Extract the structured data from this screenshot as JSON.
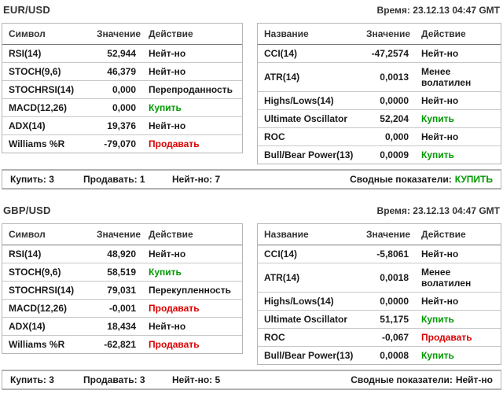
{
  "colors": {
    "buy": "#009900",
    "sell": "#dd0000",
    "text": "#1a1a1a",
    "border": "#b5b5b5"
  },
  "sections": [
    {
      "pair": "EUR/USD",
      "time": "Время: 23.12.13 04:47 GMT",
      "left_table": {
        "headers": {
          "name": "Символ",
          "value": "Значение",
          "action": "Действие"
        },
        "rows": [
          {
            "name": "RSI(14)",
            "value": "52,944",
            "action": "Нейт-но",
            "action_class": "plain"
          },
          {
            "name": "STOCH(9,6)",
            "value": "46,379",
            "action": "Нейт-но",
            "action_class": "plain"
          },
          {
            "name": "STOCHRSI(14)",
            "value": "0,000",
            "action": "Перепроданность",
            "action_class": "plain"
          },
          {
            "name": "MACD(12,26)",
            "value": "0,000",
            "action": "Купить",
            "action_class": "buy"
          },
          {
            "name": "ADX(14)",
            "value": "19,376",
            "action": "Нейт-но",
            "action_class": "plain"
          },
          {
            "name": "Williams %R",
            "value": "-79,070",
            "action": "Продавать",
            "action_class": "sell"
          }
        ]
      },
      "right_table": {
        "headers": {
          "name": "Название",
          "value": "Значение",
          "action": "Действие"
        },
        "rows": [
          {
            "name": "CCI(14)",
            "value": "-47,2574",
            "action": "Нейт-но",
            "action_class": "plain"
          },
          {
            "name": "ATR(14)",
            "value": "0,0013",
            "action": "Менее волатилен",
            "action_class": "plain"
          },
          {
            "name": "Highs/Lows(14)",
            "value": "0,0000",
            "action": "Нейт-но",
            "action_class": "plain"
          },
          {
            "name": "Ultimate Oscillator",
            "value": "52,204",
            "action": "Купить",
            "action_class": "buy"
          },
          {
            "name": "ROC",
            "value": "0,000",
            "action": "Нейт-но",
            "action_class": "plain"
          },
          {
            "name": "Bull/Bear Power(13)",
            "value": "0,0009",
            "action": "Купить",
            "action_class": "buy"
          }
        ]
      },
      "summary": {
        "buy": "Купить: 3",
        "sell": "Продавать: 1",
        "neutral": "Нейт-но: 7",
        "overall_label": "Сводные показатели:",
        "overall_value": "КУПИТЬ",
        "overall_class": "buy"
      }
    },
    {
      "pair": "GBP/USD",
      "time": "Время: 23.12.13 04:47 GMT",
      "left_table": {
        "headers": {
          "name": "Символ",
          "value": "Значение",
          "action": "Действие"
        },
        "rows": [
          {
            "name": "RSI(14)",
            "value": "48,920",
            "action": "Нейт-но",
            "action_class": "plain"
          },
          {
            "name": "STOCH(9,6)",
            "value": "58,519",
            "action": "Купить",
            "action_class": "buy"
          },
          {
            "name": "STOCHRSI(14)",
            "value": "79,031",
            "action": "Перекупленность",
            "action_class": "plain"
          },
          {
            "name": "MACD(12,26)",
            "value": "-0,001",
            "action": "Продавать",
            "action_class": "sell"
          },
          {
            "name": "ADX(14)",
            "value": "18,434",
            "action": "Нейт-но",
            "action_class": "plain"
          },
          {
            "name": "Williams %R",
            "value": "-62,821",
            "action": "Продавать",
            "action_class": "sell"
          }
        ]
      },
      "right_table": {
        "headers": {
          "name": "Название",
          "value": "Значение",
          "action": "Действие"
        },
        "rows": [
          {
            "name": "CCI(14)",
            "value": "-5,8061",
            "action": "Нейт-но",
            "action_class": "plain"
          },
          {
            "name": "ATR(14)",
            "value": "0,0018",
            "action": "Менее волатилен",
            "action_class": "plain"
          },
          {
            "name": "Highs/Lows(14)",
            "value": "0,0000",
            "action": "Нейт-но",
            "action_class": "plain"
          },
          {
            "name": "Ultimate Oscillator",
            "value": "51,175",
            "action": "Купить",
            "action_class": "buy"
          },
          {
            "name": "ROC",
            "value": "-0,067",
            "action": "Продавать",
            "action_class": "sell"
          },
          {
            "name": "Bull/Bear Power(13)",
            "value": "0,0008",
            "action": "Купить",
            "action_class": "buy"
          }
        ]
      },
      "summary": {
        "buy": "Купить: 3",
        "sell": "Продавать: 3",
        "neutral": "Нейт-но: 5",
        "overall_label": "Сводные показатели:",
        "overall_value": "Нейт-но",
        "overall_class": "plain"
      }
    }
  ]
}
